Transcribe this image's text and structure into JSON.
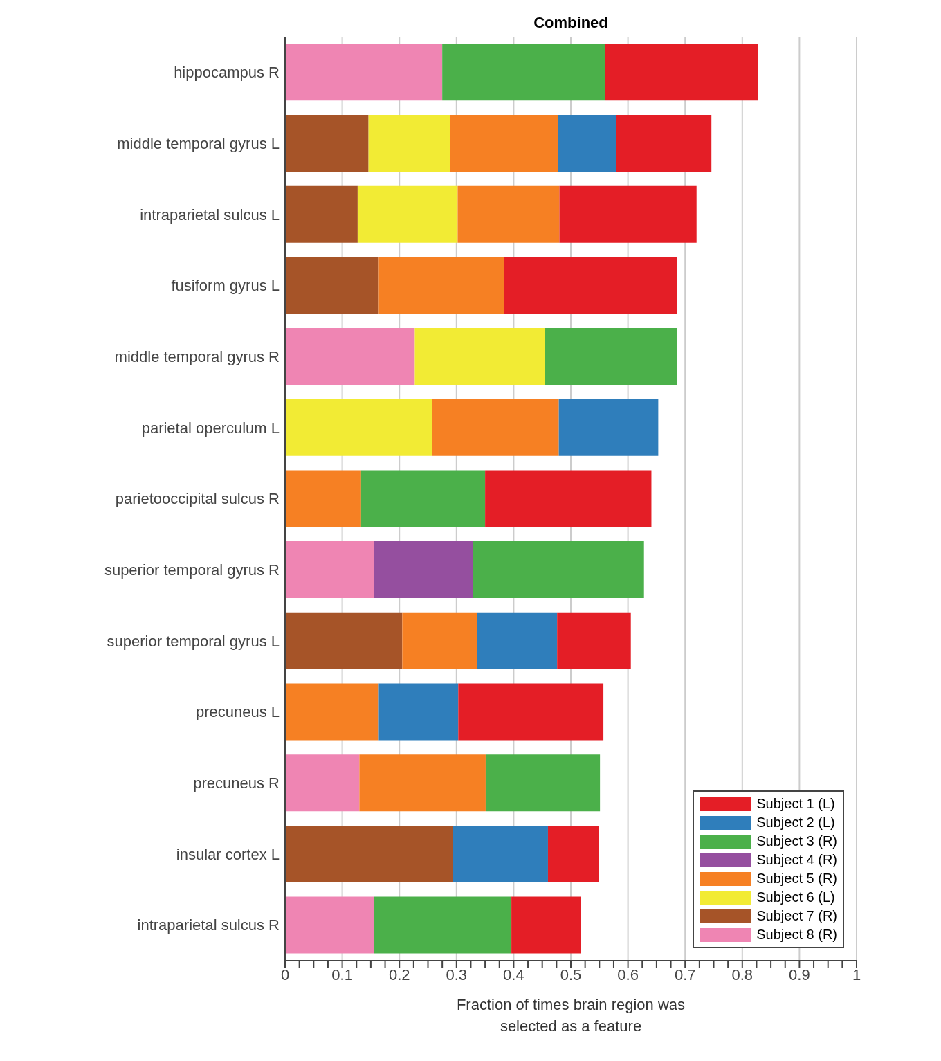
{
  "chart_data": {
    "type": "bar",
    "orientation": "horizontal",
    "stacked": true,
    "title": "Combined",
    "xlabel": "Fraction of times brain region was selected as a feature",
    "categories": [
      "hippocampus R",
      "middle temporal gyrus L",
      "intraparietal sulcus L",
      "fusiform gyrus L",
      "middle temporal gyrus R",
      "parietal operculum L",
      "parietooccipital sulcus R",
      "superior temporal gyrus R",
      "superior temporal gyrus L",
      "precuneus L",
      "precuneus R",
      "insular cortex L",
      "intraparietal sulcus R"
    ],
    "series": [
      {
        "name": "Subject 8 (R)",
        "color": "#ef85b3",
        "values": [
          0.275,
          0,
          0,
          0,
          0.227,
          0,
          0,
          0.155,
          0,
          0,
          0.13,
          0,
          0.155
        ]
      },
      {
        "name": "Subject 7 (R)",
        "color": "#a65428",
        "values": [
          0,
          0.146,
          0.127,
          0.164,
          0,
          0,
          0,
          0,
          0.205,
          0,
          0,
          0.293,
          0
        ]
      },
      {
        "name": "Subject 6 (L)",
        "color": "#f2eb34",
        "values": [
          0,
          0.143,
          0.175,
          0,
          0.228,
          0.257,
          0,
          0,
          0,
          0,
          0,
          0,
          0
        ]
      },
      {
        "name": "Subject 5 (R)",
        "color": "#f68023",
        "values": [
          0,
          0.188,
          0.178,
          0.219,
          0,
          0.222,
          0.133,
          0,
          0.131,
          0.164,
          0.221,
          0,
          0
        ]
      },
      {
        "name": "Subject 4 (R)",
        "color": "#954f9f",
        "values": [
          0,
          0,
          0,
          0,
          0,
          0,
          0,
          0.174,
          0,
          0,
          0,
          0,
          0
        ]
      },
      {
        "name": "Subject 3 (R)",
        "color": "#4bb04a",
        "values": [
          0.285,
          0,
          0,
          0,
          0.231,
          0,
          0.217,
          0.299,
          0,
          0,
          0.2,
          0,
          0.241
        ]
      },
      {
        "name": "Subject 2 (L)",
        "color": "#2f7ebb",
        "values": [
          0,
          0.102,
          0,
          0,
          0,
          0.174,
          0,
          0,
          0.14,
          0.139,
          0,
          0.167,
          0
        ]
      },
      {
        "name": "Subject 1 (L)",
        "color": "#e41e26",
        "values": [
          0.267,
          0.167,
          0.24,
          0.303,
          0,
          0,
          0.291,
          0,
          0.129,
          0.254,
          0,
          0.089,
          0.121
        ]
      }
    ],
    "xlim": [
      0,
      1
    ],
    "xticks": [
      0,
      {
        "value": 0.025,
        "label": null
      },
      {
        "value": 0.05,
        "label": null
      },
      {
        "value": 0.075,
        "label": null
      },
      0.1,
      {
        "value": 0.125,
        "label": null
      },
      {
        "value": 0.15,
        "label": null
      },
      {
        "value": 0.175,
        "label": null
      },
      0.2,
      {
        "value": 0.225,
        "label": null
      },
      {
        "value": 0.25,
        "label": null
      },
      {
        "value": 0.275,
        "label": null
      },
      0.3,
      {
        "value": 0.325,
        "label": null
      },
      {
        "value": 0.35,
        "label": null
      },
      {
        "value": 0.375,
        "label": null
      },
      0.4,
      {
        "value": 0.425,
        "label": null
      },
      {
        "value": 0.45,
        "label": null
      },
      {
        "value": 0.475,
        "label": null
      },
      0.5,
      {
        "value": 0.525,
        "label": null
      },
      {
        "value": 0.55,
        "label": null
      },
      {
        "value": 0.575,
        "label": null
      },
      0.6,
      {
        "value": 0.625,
        "label": null
      },
      {
        "value": 0.65,
        "label": null
      },
      {
        "value": 0.675,
        "label": null
      },
      0.7,
      {
        "value": 0.725,
        "label": null
      },
      {
        "value": 0.75,
        "label": null
      },
      {
        "value": 0.775,
        "label": null
      },
      0.8,
      {
        "value": 0.825,
        "label": null
      },
      {
        "value": 0.85,
        "label": null
      },
      {
        "value": 0.875,
        "label": null
      },
      0.9,
      {
        "value": 0.925,
        "label": null
      },
      {
        "value": 0.95,
        "label": null
      },
      {
        "value": 0.975,
        "label": null
      },
      1
    ],
    "grid": "x",
    "legend": "bottom right"
  }
}
